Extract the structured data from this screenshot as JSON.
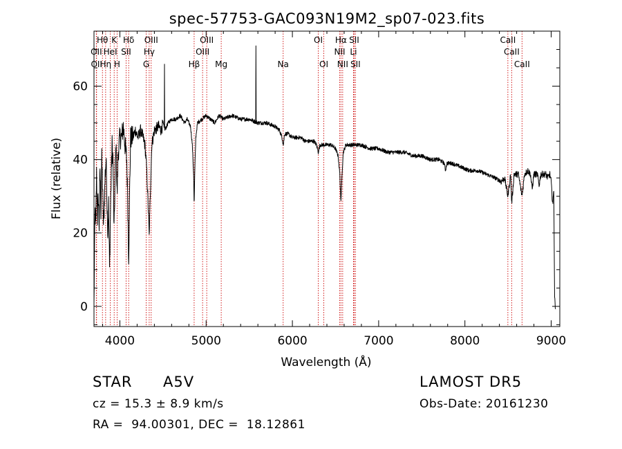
{
  "chart_data": {
    "type": "line",
    "title": "spec-57753-GAC093N19M2_sp07-023.fits",
    "xlabel": "Wavelength (Å)",
    "ylabel": "Flux (relative)",
    "xlim": [
      3700,
      9100
    ],
    "ylim": [
      -5.5,
      75
    ],
    "xticks": [
      4000,
      5000,
      6000,
      7000,
      8000,
      9000
    ],
    "xtick_labels": [
      "4000",
      "5000",
      "6000",
      "7000",
      "8000",
      "9000"
    ],
    "yticks": [
      0,
      20,
      40,
      60
    ],
    "ytick_labels": [
      "0",
      "20",
      "40",
      "60"
    ],
    "line_color": "#000000",
    "marker_color": "#cc0000",
    "grid": false,
    "spectrum_anchors": [
      [
        3700,
        0
      ],
      [
        3705,
        12
      ],
      [
        3712,
        26
      ],
      [
        3720,
        22
      ],
      [
        3730,
        36
      ],
      [
        3740,
        24
      ],
      [
        3750,
        30
      ],
      [
        3760,
        22
      ],
      [
        3770,
        38
      ],
      [
        3780,
        26
      ],
      [
        3790,
        40
      ],
      [
        3800,
        32
      ],
      [
        3810,
        22
      ],
      [
        3820,
        28
      ],
      [
        3830,
        36
      ],
      [
        3840,
        40
      ],
      [
        3850,
        30
      ],
      [
        3860,
        20
      ],
      [
        3870,
        28
      ],
      [
        3880,
        10
      ],
      [
        3890,
        24
      ],
      [
        3900,
        36
      ],
      [
        3910,
        44
      ],
      [
        3920,
        40
      ],
      [
        3933,
        20
      ],
      [
        3945,
        36
      ],
      [
        3955,
        44
      ],
      [
        3968,
        30
      ],
      [
        3980,
        42
      ],
      [
        4000,
        46
      ],
      [
        4020,
        46
      ],
      [
        4040,
        49
      ],
      [
        4060,
        44
      ],
      [
        4080,
        40
      ],
      [
        4090,
        30
      ],
      [
        4102,
        13
      ],
      [
        4112,
        30
      ],
      [
        4125,
        46
      ],
      [
        4150,
        46
      ],
      [
        4180,
        48
      ],
      [
        4210,
        46
      ],
      [
        4240,
        48
      ],
      [
        4270,
        46
      ],
      [
        4290,
        44
      ],
      [
        4310,
        38
      ],
      [
        4330,
        26
      ],
      [
        4340,
        19
      ],
      [
        4352,
        30
      ],
      [
        4370,
        44
      ],
      [
        4400,
        48
      ],
      [
        4450,
        49
      ],
      [
        4480,
        48
      ],
      [
        4500,
        50
      ],
      [
        4520,
        48
      ],
      [
        4560,
        50
      ],
      [
        4600,
        51
      ],
      [
        4650,
        51
      ],
      [
        4700,
        52
      ],
      [
        4750,
        50
      ],
      [
        4780,
        51
      ],
      [
        4800,
        50
      ],
      [
        4820,
        49
      ],
      [
        4840,
        44
      ],
      [
        4855,
        36
      ],
      [
        4861,
        27
      ],
      [
        4868,
        36
      ],
      [
        4880,
        46
      ],
      [
        4900,
        50
      ],
      [
        4950,
        51
      ],
      [
        5000,
        52
      ],
      [
        5050,
        51
      ],
      [
        5100,
        50
      ],
      [
        5150,
        52
      ],
      [
        5200,
        51
      ],
      [
        5300,
        52
      ],
      [
        5400,
        51
      ],
      [
        5500,
        51
      ],
      [
        5600,
        50
      ],
      [
        5700,
        50
      ],
      [
        5800,
        49
      ],
      [
        5850,
        48
      ],
      [
        5880,
        46
      ],
      [
        5895,
        44
      ],
      [
        5910,
        47
      ],
      [
        5950,
        47
      ],
      [
        6000,
        46
      ],
      [
        6050,
        46
      ],
      [
        6100,
        46
      ],
      [
        6150,
        45
      ],
      [
        6200,
        45
      ],
      [
        6250,
        45
      ],
      [
        6280,
        44
      ],
      [
        6300,
        42
      ],
      [
        6320,
        44
      ],
      [
        6350,
        44
      ],
      [
        6400,
        44
      ],
      [
        6450,
        44
      ],
      [
        6500,
        43
      ],
      [
        6530,
        41
      ],
      [
        6550,
        36
      ],
      [
        6563,
        28
      ],
      [
        6575,
        36
      ],
      [
        6590,
        42
      ],
      [
        6620,
        44
      ],
      [
        6650,
        44
      ],
      [
        6700,
        44
      ],
      [
        6750,
        44
      ],
      [
        6800,
        44
      ],
      [
        6900,
        43
      ],
      [
        7000,
        43
      ],
      [
        7100,
        42
      ],
      [
        7200,
        42
      ],
      [
        7300,
        42
      ],
      [
        7400,
        41
      ],
      [
        7500,
        41
      ],
      [
        7600,
        40
      ],
      [
        7700,
        40
      ],
      [
        7760,
        39
      ],
      [
        7775,
        37
      ],
      [
        7790,
        39
      ],
      [
        7850,
        39
      ],
      [
        7950,
        38
      ],
      [
        8050,
        37
      ],
      [
        8150,
        37
      ],
      [
        8250,
        36
      ],
      [
        8350,
        35
      ],
      [
        8420,
        34
      ],
      [
        8460,
        35
      ],
      [
        8498,
        30
      ],
      [
        8530,
        36
      ],
      [
        8542,
        28
      ],
      [
        8570,
        36
      ],
      [
        8620,
        36
      ],
      [
        8662,
        30
      ],
      [
        8690,
        36
      ],
      [
        8730,
        37
      ],
      [
        8760,
        36
      ],
      [
        8780,
        32
      ],
      [
        8800,
        36
      ],
      [
        8840,
        36
      ],
      [
        8860,
        33
      ],
      [
        8880,
        36
      ],
      [
        8940,
        36
      ],
      [
        8960,
        35
      ],
      [
        8985,
        36
      ],
      [
        9000,
        34
      ],
      [
        9010,
        30
      ],
      [
        9020,
        28
      ],
      [
        9030,
        32
      ],
      [
        9040,
        2
      ],
      [
        9050,
        0
      ]
    ],
    "spikes": [
      [
        4518,
        66
      ],
      [
        5577,
        71
      ]
    ],
    "lines": [
      {
        "label": "Hθ",
        "wave": 3798,
        "row": 0
      },
      {
        "label": "K",
        "wave": 3934,
        "row": 0
      },
      {
        "label": "Hδ",
        "wave": 4102,
        "row": 0
      },
      {
        "label": "OIII",
        "wave": 4363,
        "row": 0
      },
      {
        "label": "OIII",
        "wave": 5007,
        "row": 0
      },
      {
        "label": "OI",
        "wave": 6300,
        "row": 0
      },
      {
        "label": "Hα",
        "wave": 6563,
        "row": 0
      },
      {
        "label": "SII",
        "wave": 6716,
        "row": 0
      },
      {
        "label": "CaII",
        "wave": 8498,
        "row": 0
      },
      {
        "label": "OII",
        "wave": 3727,
        "row": 1
      },
      {
        "label": "HeI",
        "wave": 3889,
        "row": 1
      },
      {
        "label": "SII",
        "wave": 4072,
        "row": 1
      },
      {
        "label": "Hγ",
        "wave": 4340,
        "row": 1
      },
      {
        "label": "OIII",
        "wave": 4959,
        "row": 1
      },
      {
        "label": "NII",
        "wave": 6548,
        "row": 1
      },
      {
        "label": "Li",
        "wave": 6708,
        "row": 1
      },
      {
        "label": "CaII",
        "wave": 8542,
        "row": 1
      },
      {
        "label": "OII",
        "wave": 3730,
        "row": 2
      },
      {
        "label": "Hη",
        "wave": 3835,
        "row": 2
      },
      {
        "label": "H",
        "wave": 3968,
        "row": 2
      },
      {
        "label": "G",
        "wave": 4305,
        "row": 2
      },
      {
        "label": "Hβ",
        "wave": 4861,
        "row": 2
      },
      {
        "label": "Mg",
        "wave": 5175,
        "row": 2
      },
      {
        "label": "Na",
        "wave": 5893,
        "row": 2
      },
      {
        "label": "OI",
        "wave": 6364,
        "row": 2
      },
      {
        "label": "NII",
        "wave": 6583,
        "row": 2
      },
      {
        "label": "SII",
        "wave": 6731,
        "row": 2
      },
      {
        "label": "CaII",
        "wave": 8662,
        "row": 2
      }
    ]
  },
  "info": {
    "object_class": "STAR",
    "subclass": "A5V",
    "survey": "LAMOST DR5",
    "redshift": "cz = 15.3 ± 8.9 km/s",
    "obs_date": "Obs-Date: 20161230",
    "coords": "RA =  94.00301, DEC =  18.12861"
  }
}
